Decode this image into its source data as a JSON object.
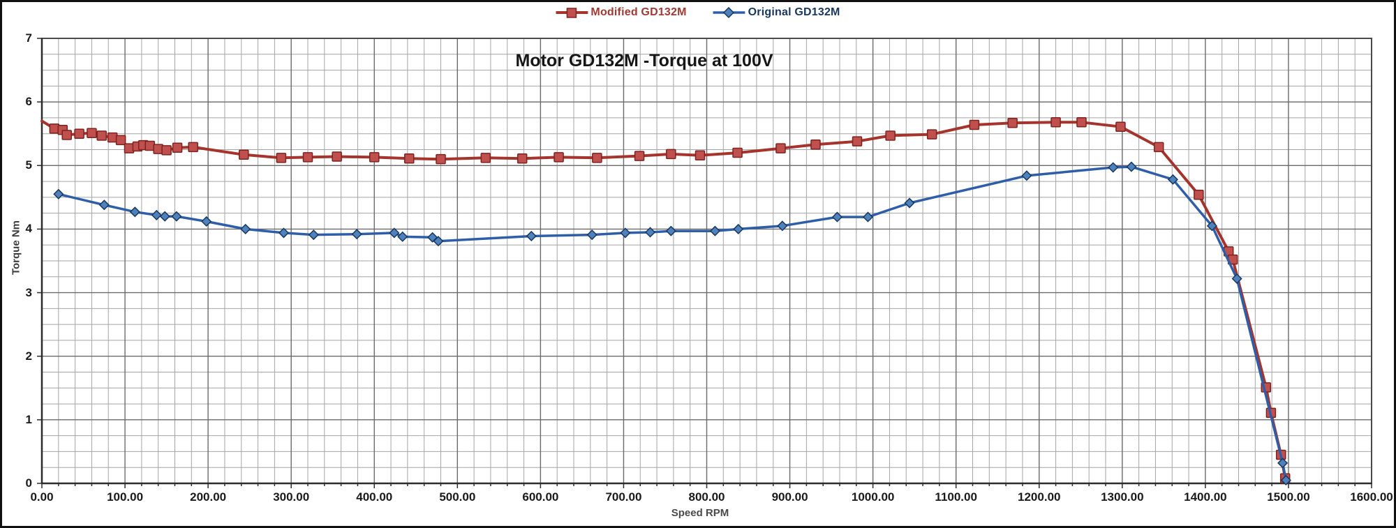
{
  "chart_data": {
    "type": "line",
    "title": "Motor GD132M -Torque at 100V",
    "xlabel": "Speed RPM",
    "ylabel": "Torque Nm",
    "xlim": [
      0,
      1600
    ],
    "ylim": [
      0,
      7
    ],
    "x_major_step": 100,
    "x_minor_step": 20,
    "y_major_step": 1,
    "y_minor_step": 0.25,
    "grid": "both",
    "legend_position": "top-center",
    "grid_minor_color": "#a5a5a5",
    "grid_major_color": "#6a6a6a",
    "axis_color": "#2b2b2b",
    "x_tick_labels": [
      "0.00",
      "100.00",
      "200.00",
      "300.00",
      "400.00",
      "500.00",
      "600.00",
      "700.00",
      "800.00",
      "900.00",
      "1000.00",
      "1100.00",
      "1200.00",
      "1300.00",
      "1400.00",
      "1500.00",
      "1600.00"
    ],
    "y_tick_labels": [
      "0",
      "1",
      "2",
      "3",
      "4",
      "5",
      "6",
      "7"
    ],
    "series": [
      {
        "name": "Modified GD132M",
        "marker": "square",
        "line_color": "#a5342d",
        "marker_fill": "#c0504d",
        "marker_stroke": "#7e221e",
        "label_color": "#9e3a33",
        "line_width": 4,
        "first_point_no_marker": true,
        "points": [
          [
            0,
            5.7
          ],
          [
            15,
            5.58
          ],
          [
            25,
            5.56
          ],
          [
            30,
            5.48
          ],
          [
            45,
            5.5
          ],
          [
            60,
            5.51
          ],
          [
            72,
            5.47
          ],
          [
            85,
            5.44
          ],
          [
            95,
            5.4
          ],
          [
            105,
            5.27
          ],
          [
            115,
            5.3
          ],
          [
            122,
            5.32
          ],
          [
            130,
            5.31
          ],
          [
            140,
            5.26
          ],
          [
            150,
            5.24
          ],
          [
            163,
            5.28
          ],
          [
            182,
            5.29
          ],
          [
            243,
            5.17
          ],
          [
            288,
            5.12
          ],
          [
            320,
            5.13
          ],
          [
            355,
            5.14
          ],
          [
            400,
            5.13
          ],
          [
            442,
            5.11
          ],
          [
            480,
            5.1
          ],
          [
            534,
            5.12
          ],
          [
            578,
            5.11
          ],
          [
            622,
            5.13
          ],
          [
            668,
            5.12
          ],
          [
            719,
            5.15
          ],
          [
            757,
            5.18
          ],
          [
            792,
            5.16
          ],
          [
            837,
            5.2
          ],
          [
            889,
            5.27
          ],
          [
            931,
            5.33
          ],
          [
            981,
            5.38
          ],
          [
            1021,
            5.47
          ],
          [
            1071,
            5.49
          ],
          [
            1122,
            5.64
          ],
          [
            1168,
            5.67
          ],
          [
            1220,
            5.68
          ],
          [
            1251,
            5.68
          ],
          [
            1298,
            5.61
          ],
          [
            1344,
            5.29
          ],
          [
            1392,
            4.54
          ],
          [
            1428,
            3.65
          ],
          [
            1433,
            3.52
          ],
          [
            1473,
            1.51
          ],
          [
            1479,
            1.11
          ],
          [
            1491,
            0.45
          ],
          [
            1496,
            0.08
          ]
        ]
      },
      {
        "name": "Original GD132M",
        "marker": "diamond",
        "line_color": "#2f5ea8",
        "marker_fill": "#4f81bd",
        "marker_stroke": "#17375e",
        "label_color": "#17375e",
        "line_width": 3.5,
        "first_point_no_marker": false,
        "points": [
          [
            20,
            4.55
          ],
          [
            75,
            4.38
          ],
          [
            112,
            4.27
          ],
          [
            138,
            4.22
          ],
          [
            148,
            4.2
          ],
          [
            162,
            4.2
          ],
          [
            198,
            4.12
          ],
          [
            245,
            4.0
          ],
          [
            291,
            3.94
          ],
          [
            327,
            3.91
          ],
          [
            379,
            3.92
          ],
          [
            424,
            3.94
          ],
          [
            434,
            3.88
          ],
          [
            470,
            3.87
          ],
          [
            477,
            3.81
          ],
          [
            589,
            3.89
          ],
          [
            662,
            3.91
          ],
          [
            702,
            3.94
          ],
          [
            732,
            3.95
          ],
          [
            757,
            3.97
          ],
          [
            810,
            3.97
          ],
          [
            838,
            4.0
          ],
          [
            891,
            4.05
          ],
          [
            957,
            4.19
          ],
          [
            994,
            4.19
          ],
          [
            1044,
            4.41
          ],
          [
            1185,
            4.84
          ],
          [
            1289,
            4.97
          ],
          [
            1311,
            4.98
          ],
          [
            1361,
            4.78
          ],
          [
            1408,
            4.05
          ],
          [
            1438,
            3.22
          ],
          [
            1493,
            0.32
          ],
          [
            1497,
            0.05
          ]
        ]
      }
    ]
  }
}
